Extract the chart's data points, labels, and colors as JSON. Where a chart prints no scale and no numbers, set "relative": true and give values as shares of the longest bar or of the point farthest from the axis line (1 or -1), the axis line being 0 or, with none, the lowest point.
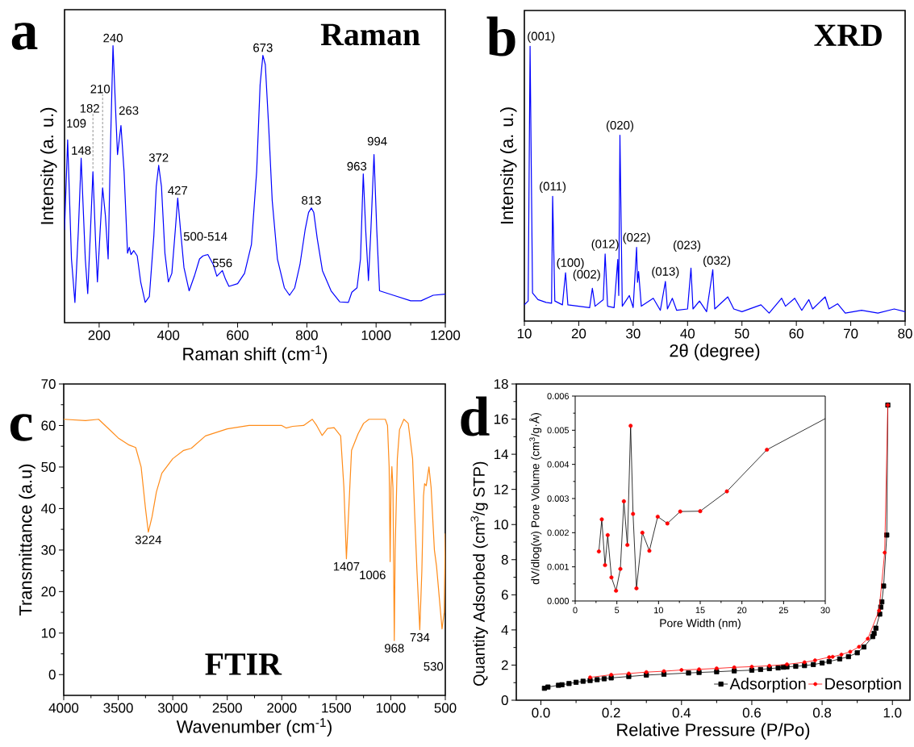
{
  "chart_data": [
    {
      "type": "line",
      "title": "a",
      "xlabel": "Raman shift (cm$^{-1}$)",
      "ylabel": "Intensity (a. u.)",
      "relative": true,
      "color": "#0000ff",
      "xlim": [
        100,
        1200
      ],
      "xticks": [
        200,
        400,
        600,
        800,
        1000,
        1200
      ],
      "x": [
        100,
        109,
        120,
        130,
        140,
        148,
        160,
        167,
        175,
        182,
        190,
        195,
        203,
        210,
        218,
        226,
        233,
        240,
        248,
        253,
        263,
        272,
        282,
        287,
        292,
        300,
        310,
        320,
        333,
        345,
        358,
        365,
        372,
        380,
        390,
        400,
        410,
        420,
        427,
        435,
        445,
        460,
        475,
        490,
        500,
        514,
        530,
        540,
        548,
        556,
        565,
        575,
        600,
        620,
        640,
        655,
        665,
        673,
        680,
        690,
        700,
        715,
        735,
        750,
        765,
        780,
        795,
        805,
        813,
        820,
        830,
        845,
        870,
        895,
        920,
        930,
        945,
        955,
        963,
        970,
        978,
        985,
        994,
        1002,
        1010,
        1050,
        1100,
        1130,
        1165,
        1200
      ],
      "values": [
        0.335,
        0.66,
        0.23,
        0.073,
        0.335,
        0.594,
        0.23,
        0.105,
        0.335,
        0.545,
        0.283,
        0.147,
        0.335,
        0.487,
        0.387,
        0.23,
        0.649,
        1.0,
        0.754,
        0.607,
        0.712,
        0.545,
        0.251,
        0.272,
        0.246,
        0.26,
        0.241,
        0.147,
        0.073,
        0.094,
        0.314,
        0.492,
        0.568,
        0.492,
        0.251,
        0.147,
        0.178,
        0.335,
        0.45,
        0.335,
        0.199,
        0.115,
        0.168,
        0.23,
        0.241,
        0.246,
        0.209,
        0.168,
        0.178,
        0.188,
        0.157,
        0.131,
        0.141,
        0.178,
        0.283,
        0.545,
        0.859,
        0.965,
        0.932,
        0.702,
        0.44,
        0.23,
        0.126,
        0.099,
        0.126,
        0.209,
        0.335,
        0.398,
        0.414,
        0.398,
        0.304,
        0.188,
        0.115,
        0.075,
        0.073,
        0.11,
        0.126,
        0.23,
        0.537,
        0.335,
        0.152,
        0.335,
        0.607,
        0.335,
        0.115,
        0.099,
        0.079,
        0.079,
        0.099,
        0.103
      ],
      "annotations": [
        {
          "text": "109",
          "x": 109,
          "y": 0.66
        },
        {
          "text": "148",
          "x": 148,
          "y": 0.594
        },
        {
          "text": "182",
          "x": 182,
          "y": 0.545
        },
        {
          "text": "210",
          "x": 210,
          "y": 0.487
        },
        {
          "text": "240",
          "x": 240,
          "y": 1.0
        },
        {
          "text": "263",
          "x": 263,
          "y": 0.712
        },
        {
          "text": "372",
          "x": 372,
          "y": 0.568
        },
        {
          "text": "427",
          "x": 427,
          "y": 0.45
        },
        {
          "text": "500-514",
          "x": 507,
          "y": 0.246
        },
        {
          "text": "556",
          "x": 556,
          "y": 0.188
        },
        {
          "text": "673",
          "x": 673,
          "y": 0.965
        },
        {
          "text": "813",
          "x": 813,
          "y": 0.414
        },
        {
          "text": "963",
          "x": 963,
          "y": 0.537
        },
        {
          "text": "994",
          "x": 994,
          "y": 0.607
        },
        "Raman"
      ]
    },
    {
      "type": "line",
      "title": "b",
      "xlabel": "2θ (degree)",
      "ylabel": "Intensity (a. u.)",
      "relative": true,
      "color": "#0000ff",
      "xlim": [
        10,
        80
      ],
      "xticks": [
        10,
        20,
        30,
        40,
        50,
        60,
        70,
        80
      ],
      "x": [
        10,
        10.7,
        11.05,
        11.5,
        12.5,
        14,
        15,
        15.2,
        15.6,
        17,
        17.57,
        18,
        20,
        22,
        22.5,
        23,
        24.5,
        24.85,
        25.3,
        26.5,
        27.17,
        27.35,
        27.57,
        28,
        29.3,
        30,
        30.63,
        30.8,
        31,
        31.5,
        33.7,
        35,
        35.93,
        36.3,
        37.2,
        38,
        40,
        40.63,
        41,
        42.2,
        43.5,
        44.64,
        45,
        47.4,
        48.5,
        50,
        53.5,
        55,
        57.3,
        58,
        59.7,
        61,
        62.3,
        63,
        65.3,
        66,
        67.6,
        69,
        72,
        75,
        78,
        80
      ],
      "values": [
        0.059,
        0.073,
        1.0,
        0.102,
        0.078,
        0.068,
        0.065,
        0.454,
        0.073,
        0.059,
        0.176,
        0.059,
        0.054,
        0.049,
        0.119,
        0.054,
        0.078,
        0.244,
        0.054,
        0.049,
        0.224,
        0.093,
        0.676,
        0.054,
        0.093,
        0.049,
        0.268,
        0.141,
        0.18,
        0.054,
        0.083,
        0.039,
        0.144,
        0.044,
        0.083,
        0.039,
        0.044,
        0.193,
        0.044,
        0.073,
        0.034,
        0.187,
        0.044,
        0.088,
        0.044,
        0.034,
        0.059,
        0.029,
        0.083,
        0.054,
        0.083,
        0.039,
        0.078,
        0.044,
        0.088,
        0.044,
        0.063,
        0.029,
        0.039,
        0.029,
        0.044,
        0.034
      ],
      "annotations": [
        {
          "text": "(001)",
          "x": 11.05,
          "y": 1.0
        },
        {
          "text": "(011)",
          "x": 15.2,
          "y": 0.454
        },
        {
          "text": "(100)",
          "x": 17.57,
          "y": 0.176
        },
        {
          "text": "(002)",
          "x": 22.5,
          "y": 0.119
        },
        {
          "text": "(012)",
          "x": 24.85,
          "y": 0.244
        },
        {
          "text": "(020)",
          "x": 27.57,
          "y": 0.676
        },
        {
          "text": "(022)",
          "x": 30.63,
          "y": 0.268
        },
        {
          "text": "(013)",
          "x": 35.93,
          "y": 0.144
        },
        {
          "text": "(023)",
          "x": 40.63,
          "y": 0.193
        },
        {
          "text": "(032)",
          "x": 44.64,
          "y": 0.187
        },
        "XRD"
      ]
    },
    {
      "type": "line",
      "title": "c",
      "xlabel": "Wavenumber (cm$^{-1}$)",
      "ylabel": "Transmittance (a.u)",
      "color": "#ff8c1a",
      "xlim": [
        4000,
        500
      ],
      "xticks": [
        4000,
        3500,
        3000,
        2500,
        2000,
        1500,
        1000,
        500
      ],
      "ylim": [
        -5,
        70
      ],
      "yticks": [
        0,
        10,
        20,
        30,
        40,
        50,
        60,
        70
      ],
      "x": [
        4000,
        3800,
        3680,
        3600,
        3500,
        3400,
        3340,
        3290,
        3250,
        3224,
        3190,
        3150,
        3100,
        3000,
        2900,
        2830,
        2700,
        2500,
        2300,
        2000,
        1960,
        1900,
        1800,
        1720,
        1680,
        1630,
        1580,
        1520,
        1460,
        1430,
        1407,
        1385,
        1360,
        1300,
        1250,
        1200,
        1050,
        1030,
        1015,
        1006,
        998,
        990,
        980,
        968,
        960,
        940,
        920,
        880,
        840,
        800,
        780,
        760,
        734,
        715,
        700,
        690,
        675,
        650,
        630,
        600,
        580,
        560,
        530,
        510,
        500
      ],
      "values": [
        61.5,
        61.2,
        61.5,
        59.5,
        57,
        55.3,
        54.7,
        50,
        40,
        34.3,
        38,
        44,
        48.5,
        52,
        54,
        54.5,
        57.5,
        59.2,
        60,
        60,
        59.4,
        59.8,
        60,
        61.5,
        60,
        57.6,
        59.3,
        59.5,
        57.5,
        45,
        27.9,
        40,
        54,
        58,
        60.5,
        61.5,
        61.5,
        60,
        50,
        27.2,
        45,
        50.1,
        45,
        8.2,
        30,
        52,
        59,
        61.5,
        60.5,
        52,
        38,
        25,
        10.8,
        25,
        43,
        46,
        45.5,
        50,
        45,
        30,
        26,
        20,
        11,
        15,
        34
      ],
      "annotations": [
        {
          "text": "3224",
          "x": 3224,
          "y": 34.3
        },
        {
          "text": "1407",
          "x": 1407,
          "y": 27.9
        },
        {
          "text": "1006",
          "x": 1006,
          "y": 27.2
        },
        {
          "text": "968",
          "x": 968,
          "y": 8.2
        },
        {
          "text": "734",
          "x": 734,
          "y": 10.8
        },
        {
          "text": "530",
          "x": 530,
          "y": 11
        },
        "FTIR"
      ]
    },
    {
      "type": "line",
      "title": "d",
      "xlabel": "Relative Pressure (P/Po)",
      "ylabel": "Quantity Adsorbed (cm$^{3}$/g STP)",
      "legend": "bottom right",
      "xlim": [
        -0.07,
        1.05
      ],
      "xticks": [
        {
          "value": 0,
          "label": "0.0"
        },
        {
          "value": 0.2,
          "label": "0.2"
        },
        {
          "value": 0.4,
          "label": "0.4"
        },
        {
          "value": 0.6,
          "label": "0.6"
        },
        {
          "value": 0.8,
          "label": "0.8"
        },
        {
          "value": 1.0,
          "label": "1.0"
        }
      ],
      "ylim": [
        0,
        18
      ],
      "yticks": [
        0,
        2,
        4,
        6,
        8,
        10,
        12,
        14,
        16,
        18
      ],
      "series": [
        {
          "name": "Adsorption",
          "color": "#000000",
          "marker": "square",
          "x": [
            0.01,
            0.02,
            0.05,
            0.06,
            0.08,
            0.1,
            0.12,
            0.14,
            0.16,
            0.18,
            0.2,
            0.25,
            0.3,
            0.35,
            0.42,
            0.45,
            0.5,
            0.55,
            0.6,
            0.625,
            0.65,
            0.675,
            0.69,
            0.7,
            0.725,
            0.75,
            0.775,
            0.8,
            0.82,
            0.85,
            0.875,
            0.9,
            0.919,
            0.944,
            0.948,
            0.953,
            0.964,
            0.967,
            0.97,
            0.975,
            0.984,
            0.987
          ],
          "values": [
            0.68,
            0.75,
            0.85,
            0.88,
            0.95,
            1.02,
            1.08,
            1.12,
            1.17,
            1.22,
            1.27,
            1.35,
            1.43,
            1.48,
            1.55,
            1.58,
            1.62,
            1.67,
            1.71,
            1.75,
            1.8,
            1.84,
            1.88,
            1.9,
            1.93,
            1.97,
            2.03,
            2.12,
            2.2,
            2.35,
            2.48,
            2.7,
            3.03,
            3.62,
            3.8,
            4.1,
            4.9,
            5.3,
            5.6,
            6.5,
            9.4,
            16.8
          ]
        },
        {
          "name": "Desorption",
          "color": "#ff0000",
          "marker": "circle",
          "x": [
            0.14,
            0.2,
            0.25,
            0.3,
            0.35,
            0.4,
            0.45,
            0.5,
            0.55,
            0.6,
            0.65,
            0.7,
            0.75,
            0.78,
            0.82,
            0.83,
            0.855,
            0.88,
            0.905,
            0.93,
            0.962,
            0.978,
            0.987
          ],
          "values": [
            1.3,
            1.45,
            1.52,
            1.6,
            1.65,
            1.72,
            1.76,
            1.81,
            1.87,
            1.91,
            1.96,
            2.04,
            2.16,
            2.27,
            2.45,
            2.47,
            2.6,
            2.76,
            3.04,
            3.5,
            5.1,
            8.4,
            16.8
          ]
        }
      ]
    },
    {
      "type": "line",
      "xlabel": "Pore Width (nm)",
      "ylabel": "dV/dlog(w) Pore Volume (cm$^{3}$/g·Å)",
      "xlim": [
        0,
        30
      ],
      "xticks": [
        0,
        5,
        10,
        15,
        20,
        25,
        30
      ],
      "ylim": [
        0,
        0.006
      ],
      "yticks": [
        {
          "value": 0,
          "label": "0.000"
        },
        {
          "value": 0.001,
          "label": "0.001"
        },
        {
          "value": 0.002,
          "label": "0.002"
        },
        {
          "value": 0.003,
          "label": "0.003"
        },
        {
          "value": 0.004,
          "label": "0.004"
        },
        {
          "value": 0.005,
          "label": "0.005"
        },
        {
          "value": 0.006,
          "label": "0.006"
        }
      ],
      "series": [
        {
          "color": "#000000",
          "marker": "circle",
          "colors": [
            "#ff0000",
            "#ff0000",
            "#ff0000",
            "#ff0000",
            "#ff0000",
            "#ff0000",
            "#ff0000",
            "#ff0000",
            "#ff0000",
            "#ff0000",
            "#ff0000",
            "#ff0000",
            "#ff0000",
            "#ff0000",
            "#ff0000",
            "#ff0000",
            "#ff0000",
            "#ff0000",
            "#ff0000",
            "#ff0000",
            null
          ],
          "x": [
            2.84,
            3.19,
            3.58,
            3.9,
            4.35,
            4.9,
            5.42,
            5.84,
            6.26,
            6.65,
            6.94,
            7.35,
            8.06,
            8.9,
            9.9,
            11.06,
            12.6,
            15.0,
            18.2,
            23.0,
            30
          ],
          "values": [
            0.00145,
            0.00239,
            0.00105,
            0.00193,
            0.00069,
            0.0003,
            0.00094,
            0.00292,
            0.00164,
            0.00513,
            0.00255,
            0.00037,
            0.002,
            0.00147,
            0.00247,
            0.00227,
            0.00262,
            0.00263,
            0.00321,
            0.00443,
            0.00534
          ]
        }
      ]
    }
  ]
}
